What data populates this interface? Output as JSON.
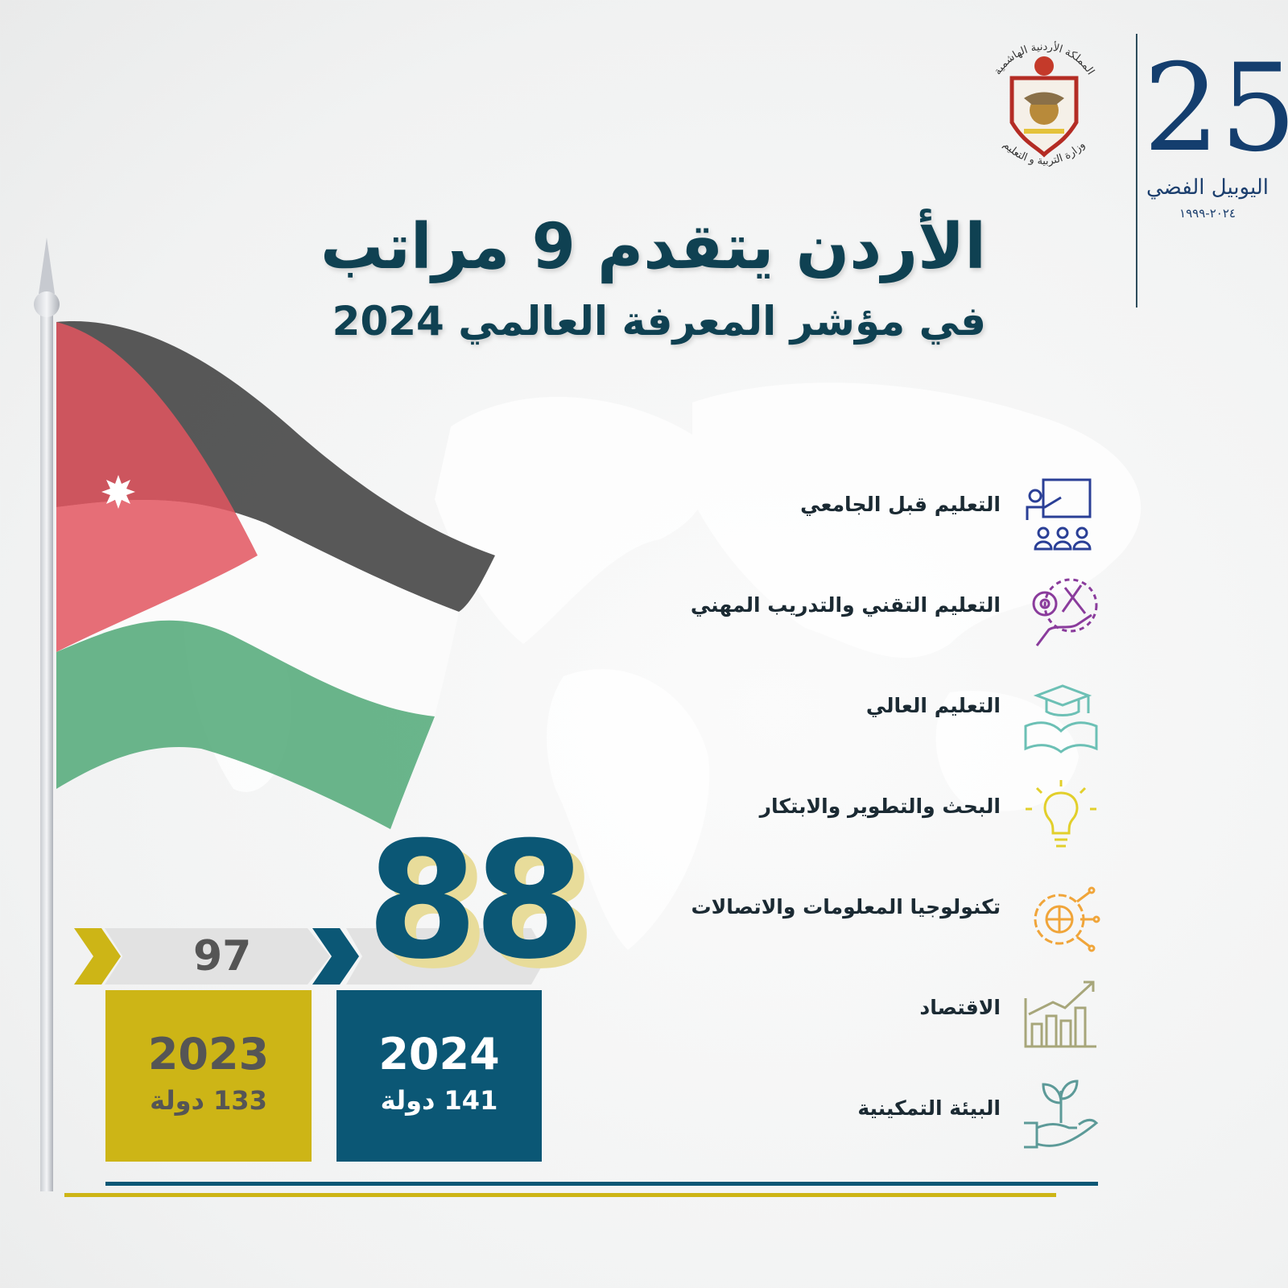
{
  "header": {
    "emblem_text_top": "المملكة الأردنية الهاشمية",
    "emblem_text_bottom": "وزارة التربية و التعليم",
    "jubilee_number": "25",
    "jubilee_name": "اليوبيل الفضي",
    "jubilee_years": "٢٠٢٤-١٩٩٩"
  },
  "title": {
    "line1": "الأردن يتقدم 9 مراتب",
    "line2": "في مؤشر المعرفة العالمي 2024"
  },
  "categories": [
    {
      "label": "التعليم قبل الجامعي",
      "icon": "classroom-teacher-icon",
      "color": "#2a3f96"
    },
    {
      "label": "التعليم التقني والتدريب المهني",
      "icon": "gear-tools-hand-icon",
      "color": "#8a3c9c"
    },
    {
      "label": "التعليم العالي",
      "icon": "graduation-cap-book-icon",
      "color": "#6cc0b5"
    },
    {
      "label": "البحث والتطوير والابتكار",
      "icon": "lightbulb-icon",
      "color": "#e2cf2b"
    },
    {
      "label": "تكنولوجيا المعلومات والاتصالات",
      "icon": "globe-circuit-icon",
      "color": "#f0a53a"
    },
    {
      "label": "الاقتصاد",
      "icon": "bar-chart-growth-icon",
      "color": "#a7a67a"
    },
    {
      "label": "البيئة التمكينية",
      "icon": "plant-hand-icon",
      "color": "#5c9a98"
    }
  ],
  "ranking": {
    "previous": {
      "rank": "97",
      "year": "2023",
      "countries": "133 دولة",
      "color": "#cdb516"
    },
    "current": {
      "rank": "88",
      "year": "2024",
      "countries": "141 دولة",
      "color": "#0b5775"
    }
  }
}
